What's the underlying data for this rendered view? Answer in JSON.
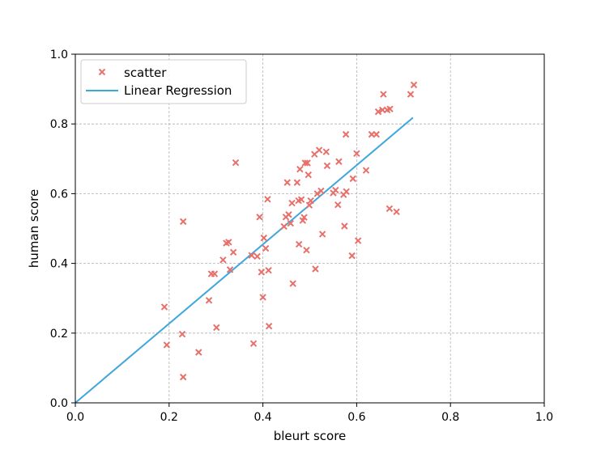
{
  "chart_data": {
    "type": "scatter",
    "xlabel": "bleurt score",
    "ylabel": "human score",
    "xlim": [
      0.0,
      1.0
    ],
    "ylim": [
      0.0,
      1.0
    ],
    "xticks": [
      "0.0",
      "0.2",
      "0.4",
      "0.6",
      "0.8",
      "1.0"
    ],
    "yticks": [
      "0.0",
      "0.2",
      "0.4",
      "0.6",
      "0.8",
      "1.0"
    ],
    "grid": true,
    "legend_position": "top-left",
    "series": [
      {
        "name": "scatter",
        "kind": "scatter",
        "marker": "x",
        "color": "#e8706a",
        "points": [
          [
            0.19,
            0.275
          ],
          [
            0.195,
            0.166
          ],
          [
            0.228,
            0.197
          ],
          [
            0.23,
            0.52
          ],
          [
            0.23,
            0.074
          ],
          [
            0.263,
            0.145
          ],
          [
            0.285,
            0.294
          ],
          [
            0.29,
            0.37
          ],
          [
            0.297,
            0.37
          ],
          [
            0.301,
            0.216
          ],
          [
            0.315,
            0.41
          ],
          [
            0.322,
            0.458
          ],
          [
            0.327,
            0.461
          ],
          [
            0.33,
            0.382
          ],
          [
            0.337,
            0.432
          ],
          [
            0.342,
            0.689
          ],
          [
            0.376,
            0.423
          ],
          [
            0.38,
            0.17
          ],
          [
            0.388,
            0.42
          ],
          [
            0.393,
            0.533
          ],
          [
            0.397,
            0.375
          ],
          [
            0.4,
            0.303
          ],
          [
            0.402,
            0.473
          ],
          [
            0.406,
            0.443
          ],
          [
            0.41,
            0.584
          ],
          [
            0.412,
            0.38
          ],
          [
            0.413,
            0.22
          ],
          [
            0.445,
            0.506
          ],
          [
            0.449,
            0.533
          ],
          [
            0.452,
            0.632
          ],
          [
            0.455,
            0.54
          ],
          [
            0.459,
            0.515
          ],
          [
            0.462,
            0.573
          ],
          [
            0.464,
            0.342
          ],
          [
            0.473,
            0.632
          ],
          [
            0.476,
            0.58
          ],
          [
            0.477,
            0.455
          ],
          [
            0.479,
            0.67
          ],
          [
            0.482,
            0.583
          ],
          [
            0.485,
            0.523
          ],
          [
            0.488,
            0.532
          ],
          [
            0.49,
            0.688
          ],
          [
            0.493,
            0.438
          ],
          [
            0.495,
            0.688
          ],
          [
            0.497,
            0.654
          ],
          [
            0.499,
            0.567
          ],
          [
            0.502,
            0.58
          ],
          [
            0.51,
            0.713
          ],
          [
            0.512,
            0.384
          ],
          [
            0.516,
            0.6
          ],
          [
            0.52,
            0.725
          ],
          [
            0.524,
            0.608
          ],
          [
            0.527,
            0.484
          ],
          [
            0.535,
            0.72
          ],
          [
            0.537,
            0.68
          ],
          [
            0.55,
            0.602
          ],
          [
            0.555,
            0.61
          ],
          [
            0.56,
            0.568
          ],
          [
            0.562,
            0.692
          ],
          [
            0.572,
            0.597
          ],
          [
            0.574,
            0.507
          ],
          [
            0.577,
            0.77
          ],
          [
            0.578,
            0.606
          ],
          [
            0.59,
            0.422
          ],
          [
            0.592,
            0.643
          ],
          [
            0.6,
            0.715
          ],
          [
            0.603,
            0.465
          ],
          [
            0.62,
            0.667
          ],
          [
            0.632,
            0.77
          ],
          [
            0.642,
            0.77
          ],
          [
            0.646,
            0.835
          ],
          [
            0.655,
            0.84
          ],
          [
            0.657,
            0.885
          ],
          [
            0.665,
            0.84
          ],
          [
            0.67,
            0.557
          ],
          [
            0.671,
            0.843
          ],
          [
            0.685,
            0.548
          ],
          [
            0.715,
            0.885
          ],
          [
            0.722,
            0.912
          ]
        ]
      },
      {
        "name": "Linear Regression",
        "kind": "line",
        "color": "#3ea6dc",
        "points": [
          [
            0.0,
            0.0
          ],
          [
            0.72,
            0.818
          ]
        ]
      }
    ]
  }
}
